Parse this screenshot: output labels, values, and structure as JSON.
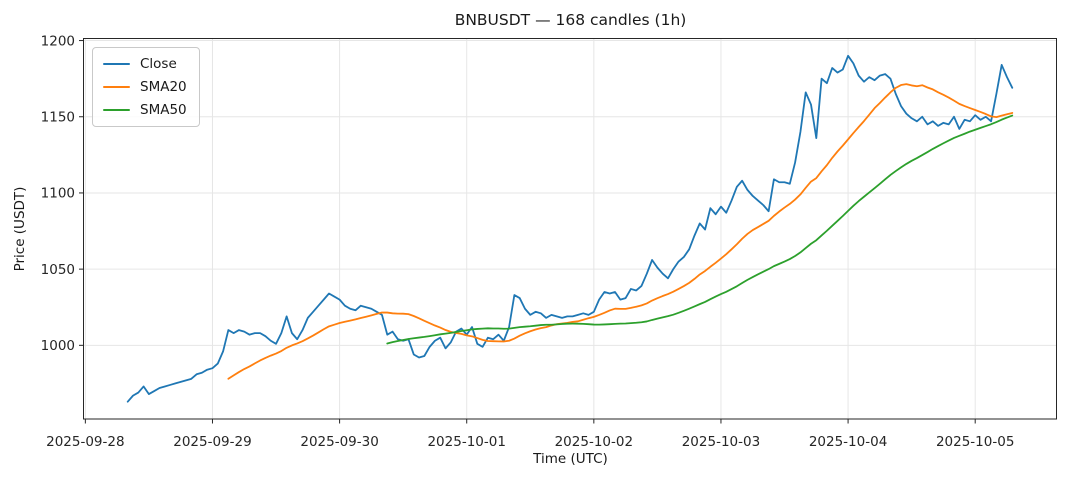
{
  "figure": {
    "title": "BNBUSDT — 168 candles (1h)",
    "x_label": "Time (UTC)",
    "y_label": "Price (USDT)"
  },
  "legend": {
    "position": "upper left",
    "items": [
      {
        "label": "Close",
        "color": "#1f77b4"
      },
      {
        "label": "SMA20",
        "color": "#ff7f0e"
      },
      {
        "label": "SMA50",
        "color": "#2ca02c"
      }
    ]
  },
  "chart_data": {
    "type": "line",
    "title": "BNBUSDT — 168 candles (1h)",
    "xlabel": "Time (UTC)",
    "ylabel": "Price (USDT)",
    "symbol": "BNBUSDT",
    "interval": "1h",
    "candle_count": 168,
    "grid": true,
    "legend_position": "upper left",
    "x_start_utc": "2025-09-28 08:00",
    "x_step_hours": 1,
    "xlim_hours": [
      -8.35,
      175.35
    ],
    "ylim": [
      951.65,
      1201.35
    ],
    "y_ticks": [
      1000,
      1050,
      1100,
      1150,
      1200
    ],
    "x_ticks": [
      {
        "hour": -8,
        "label": "2025-09-28"
      },
      {
        "hour": 16,
        "label": "2025-09-29"
      },
      {
        "hour": 40,
        "label": "2025-09-30"
      },
      {
        "hour": 64,
        "label": "2025-10-01"
      },
      {
        "hour": 88,
        "label": "2025-10-02"
      },
      {
        "hour": 112,
        "label": "2025-10-03"
      },
      {
        "hour": 136,
        "label": "2025-10-04"
      },
      {
        "hour": 160,
        "label": "2025-10-05"
      }
    ],
    "series": [
      {
        "name": "Close",
        "color": "#1f77b4",
        "kind": "raw",
        "values": [
          963,
          967,
          969,
          973,
          968,
          970,
          972,
          973,
          974,
          975,
          976,
          977,
          978,
          981,
          982,
          984,
          985,
          988,
          996,
          1010,
          1008,
          1010,
          1009,
          1007,
          1008,
          1008,
          1006,
          1003,
          1001,
          1008,
          1019,
          1008,
          1004,
          1010,
          1018,
          1022,
          1026,
          1030,
          1034,
          1032,
          1030,
          1026,
          1024,
          1023,
          1026,
          1025,
          1024,
          1022,
          1020,
          1007,
          1009,
          1004,
          1003,
          1004,
          994,
          992,
          993,
          999,
          1003,
          1005,
          998,
          1002,
          1009,
          1011,
          1007,
          1012,
          1001,
          999,
          1005,
          1004,
          1007,
          1003,
          1012,
          1033,
          1031,
          1024,
          1020,
          1022,
          1021,
          1018,
          1020,
          1019,
          1018,
          1019,
          1019,
          1020,
          1021,
          1020,
          1022,
          1030,
          1035,
          1034,
          1035,
          1030,
          1031,
          1037,
          1036,
          1039,
          1047,
          1056,
          1051,
          1047,
          1044,
          1050,
          1055,
          1058,
          1063,
          1072,
          1080,
          1076,
          1090,
          1086,
          1091,
          1087,
          1095,
          1104,
          1108,
          1102,
          1098,
          1095,
          1092,
          1088,
          1109,
          1107,
          1107,
          1106,
          1120,
          1140,
          1166,
          1158,
          1136,
          1175,
          1172,
          1182,
          1179,
          1181,
          1190,
          1185,
          1177,
          1173,
          1176,
          1174,
          1177,
          1178,
          1175,
          1165,
          1157,
          1152,
          1149,
          1147,
          1150,
          1145,
          1147,
          1144,
          1146,
          1145,
          1150,
          1142,
          1148,
          1147,
          1151,
          1148,
          1150,
          1147,
          1165,
          1184,
          1176,
          1169
        ]
      },
      {
        "name": "SMA20",
        "color": "#ff7f0e",
        "kind": "sma",
        "window": 20,
        "source": "Close"
      },
      {
        "name": "SMA50",
        "color": "#2ca02c",
        "kind": "sma",
        "window": 50,
        "source": "Close"
      }
    ]
  },
  "style": {
    "spine_color": "#262626",
    "grid_color": "#e6e6e6",
    "tick_label_color": "#262626",
    "background": "#ffffff"
  }
}
